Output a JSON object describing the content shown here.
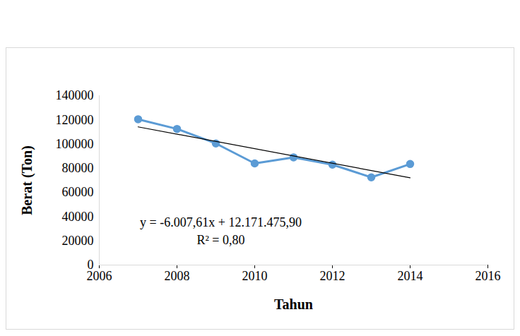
{
  "chart_data": {
    "type": "line",
    "x_label": "Tahun",
    "y_label": "Berat (Ton)",
    "x": [
      2007,
      2008,
      2009,
      2010,
      2011,
      2012,
      2013,
      2014
    ],
    "series": [
      {
        "color": "#5b9bd5",
        "marker": "circle",
        "line_style": "solid",
        "values": [
          120500,
          112500,
          100500,
          84000,
          89000,
          83000,
          72500,
          83500
        ]
      },
      {
        "color": "#000000",
        "marker": "none",
        "line_style": "solid",
        "values": [
          114200,
          null,
          null,
          null,
          null,
          null,
          null,
          72100
        ]
      }
    ],
    "annotations": [
      "y = -6.007,61x + 12.171.475,90",
      "R² = 0,80"
    ],
    "xlim": [
      2006,
      2016
    ],
    "xticks": [
      2006,
      2008,
      2010,
      2012,
      2014,
      2016
    ],
    "ylim": [
      0,
      140000
    ],
    "yticks": [
      0,
      20000,
      40000,
      60000,
      80000,
      100000,
      120000,
      140000
    ],
    "grid": false
  }
}
